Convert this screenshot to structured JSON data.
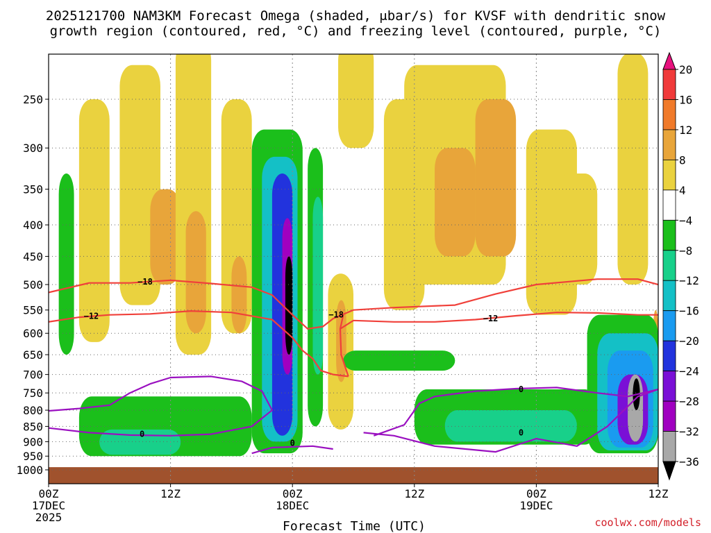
{
  "chart_data": {
    "type": "heatmap",
    "title_line1": "2025121700 NAM3KM Forecast Omega (shaded, μbar/s) for KVSF with dendritic snow",
    "title_line2": "growth region (contoured, red, °C) and freezing level (contoured, purple, °C)",
    "xlabel": "Forecast Time (UTC)",
    "credit": "coolwx.com/models",
    "x_ticks": [
      {
        "hour": 0,
        "line1": "00Z",
        "line2": "17DEC",
        "line3": "2025"
      },
      {
        "hour": 12,
        "line1": "12Z",
        "line2": "",
        "line3": ""
      },
      {
        "hour": 24,
        "line1": "00Z",
        "line2": "18DEC",
        "line3": ""
      },
      {
        "hour": 36,
        "line1": "12Z",
        "line2": "",
        "line3": ""
      },
      {
        "hour": 48,
        "line1": "00Z",
        "line2": "19DEC",
        "line3": ""
      },
      {
        "hour": 60,
        "line1": "12Z",
        "line2": "",
        "line3": ""
      }
    ],
    "xlim_hours": [
      0,
      60
    ],
    "ylim_hPa": [
      1030,
      200
    ],
    "y_ticks": [
      250,
      300,
      350,
      400,
      450,
      500,
      550,
      600,
      650,
      700,
      750,
      800,
      850,
      900,
      950,
      1000
    ],
    "colorbar": {
      "labels": [
        "20",
        "16",
        "12",
        "8",
        "4",
        "−4",
        "−8",
        "−12",
        "−16",
        "−20",
        "−24",
        "−28",
        "−32",
        "−36"
      ],
      "colors": [
        "#e8127e",
        "#f03a3a",
        "#f07a2a",
        "#e8a53a",
        "#ead23f",
        "#ffffff",
        "#1bbf1b",
        "#18d08a",
        "#14c0c6",
        "#1a9bf0",
        "#2233dd",
        "#7a10d6",
        "#a000c0",
        "#a8a8a8",
        "#000000"
      ]
    },
    "omega_cells": [
      {
        "t": [
          1,
          2.5
        ],
        "p": [
          330,
          650
        ],
        "v": -6
      },
      {
        "t": [
          3,
          6
        ],
        "p": [
          250,
          620
        ],
        "v": 6
      },
      {
        "t": [
          7,
          11
        ],
        "p": [
          220,
          540
        ],
        "v": 6
      },
      {
        "t": [
          10,
          13
        ],
        "p": [
          350,
          500
        ],
        "v": 10
      },
      {
        "t": [
          12.5,
          16
        ],
        "p": [
          200,
          650
        ],
        "v": 5
      },
      {
        "t": [
          13.5,
          15.5
        ],
        "p": [
          380,
          600
        ],
        "v": 10
      },
      {
        "t": [
          17,
          20
        ],
        "p": [
          250,
          600
        ],
        "v": 6
      },
      {
        "t": [
          18,
          19.5
        ],
        "p": [
          450,
          600
        ],
        "v": 11
      },
      {
        "t": [
          20,
          25
        ],
        "p": [
          280,
          940
        ],
        "v": -8
      },
      {
        "t": [
          21,
          24.5
        ],
        "p": [
          310,
          900
        ],
        "v": -14
      },
      {
        "t": [
          22,
          24
        ],
        "p": [
          330,
          880
        ],
        "v": -22
      },
      {
        "t": [
          23,
          24
        ],
        "p": [
          390,
          700
        ],
        "v": -30
      },
      {
        "t": [
          23.3,
          24
        ],
        "p": [
          450,
          650
        ],
        "v": -40
      },
      {
        "t": [
          25.5,
          27
        ],
        "p": [
          300,
          850
        ],
        "v": -8
      },
      {
        "t": [
          26,
          27
        ],
        "p": [
          360,
          700
        ],
        "v": -12
      },
      {
        "t": [
          27.5,
          30
        ],
        "p": [
          480,
          860
        ],
        "v": 6
      },
      {
        "t": [
          28.3,
          29.3
        ],
        "p": [
          530,
          720
        ],
        "v": 10
      },
      {
        "t": [
          28.5,
          32
        ],
        "p": [
          200,
          300
        ],
        "v": 5
      },
      {
        "t": [
          33,
          37
        ],
        "p": [
          250,
          550
        ],
        "v": 5
      },
      {
        "t": [
          35,
          45
        ],
        "p": [
          220,
          500
        ],
        "v": 6
      },
      {
        "t": [
          38,
          42
        ],
        "p": [
          300,
          450
        ],
        "v": 9
      },
      {
        "t": [
          42,
          46
        ],
        "p": [
          250,
          450
        ],
        "v": 8
      },
      {
        "t": [
          47,
          52
        ],
        "p": [
          280,
          560
        ],
        "v": 5
      },
      {
        "t": [
          50,
          54
        ],
        "p": [
          330,
          500
        ],
        "v": 6
      },
      {
        "t": [
          56,
          59
        ],
        "p": [
          210,
          500
        ],
        "v": 5
      },
      {
        "t": [
          59.5,
          60
        ],
        "p": [
          550,
          640
        ],
        "v": 8
      },
      {
        "t": [
          29,
          40
        ],
        "p": [
          640,
          690
        ],
        "v": -6
      },
      {
        "t": [
          36,
          54
        ],
        "p": [
          740,
          910
        ],
        "v": -8
      },
      {
        "t": [
          39,
          52
        ],
        "p": [
          800,
          900
        ],
        "v": -12
      },
      {
        "t": [
          53,
          60
        ],
        "p": [
          560,
          940
        ],
        "v": -8
      },
      {
        "t": [
          54,
          60
        ],
        "p": [
          600,
          930
        ],
        "v": -14
      },
      {
        "t": [
          55,
          59.5
        ],
        "p": [
          640,
          920
        ],
        "v": -20
      },
      {
        "t": [
          56,
          59
        ],
        "p": [
          700,
          910
        ],
        "v": -28
      },
      {
        "t": [
          57,
          58.5
        ],
        "p": [
          700,
          900
        ],
        "v": -33
      },
      {
        "t": [
          57.5,
          58.2
        ],
        "p": [
          710,
          800
        ],
        "v": -40
      },
      {
        "t": [
          3,
          20
        ],
        "p": [
          760,
          950
        ],
        "v": -8
      },
      {
        "t": [
          5,
          13
        ],
        "p": [
          860,
          945
        ],
        "v": -12
      }
    ],
    "red_contours": [
      {
        "label": "−18",
        "points": [
          [
            0,
            515
          ],
          [
            4,
            497
          ],
          [
            8,
            497
          ],
          [
            12,
            492
          ],
          [
            16,
            498
          ],
          [
            20,
            505
          ],
          [
            22,
            520
          ],
          [
            24,
            560
          ],
          [
            25.5,
            590
          ],
          [
            27,
            585
          ],
          [
            28,
            568
          ],
          [
            30,
            550
          ],
          [
            34,
            545
          ],
          [
            40,
            540
          ],
          [
            44,
            518
          ],
          [
            48,
            500
          ],
          [
            54,
            490
          ],
          [
            58,
            490
          ],
          [
            60,
            500
          ]
        ],
        "label_at": [
          9.5,
          495
        ]
      },
      {
        "label": "−12",
        "points": [
          [
            0,
            575
          ],
          [
            3,
            565
          ],
          [
            6,
            560
          ],
          [
            10,
            558
          ],
          [
            14,
            552
          ],
          [
            18,
            555
          ],
          [
            22,
            570
          ],
          [
            24,
            610
          ],
          [
            25,
            640
          ],
          [
            26,
            660
          ],
          [
            26.8,
            690
          ],
          [
            28,
            700
          ],
          [
            29.5,
            705
          ]
        ],
        "label_at": [
          4.2,
          563
        ]
      },
      {
        "label": "−12",
        "points": [
          [
            29.5,
            705
          ],
          [
            28.8,
            650
          ],
          [
            28.7,
            590
          ],
          [
            30,
            572
          ],
          [
            34,
            575
          ],
          [
            38,
            575
          ],
          [
            42,
            570
          ],
          [
            46,
            562
          ],
          [
            50,
            555
          ],
          [
            54,
            556
          ],
          [
            58,
            560
          ],
          [
            60,
            560
          ]
        ],
        "label_at": [
          43.5,
          568
        ]
      },
      {
        "label": "−18",
        "points": [
          [
            28.7,
            590
          ],
          [
            29,
            560
          ]
        ],
        "label_at": [
          28.3,
          560
        ]
      }
    ],
    "purple_contours": [
      {
        "label": "0",
        "points": [
          [
            0,
            802
          ],
          [
            3,
            795
          ],
          [
            6,
            785
          ],
          [
            8,
            750
          ],
          [
            10,
            725
          ],
          [
            12,
            708
          ],
          [
            16,
            705
          ],
          [
            19,
            718
          ],
          [
            21,
            745
          ],
          [
            22,
            800
          ],
          [
            20,
            850
          ],
          [
            16,
            875
          ],
          [
            12,
            880
          ],
          [
            8,
            878
          ],
          [
            4,
            870
          ],
          [
            0,
            855
          ]
        ],
        "label_at": [
          9.2,
          875
        ]
      },
      {
        "label": "0",
        "points": [
          [
            20,
            940
          ],
          [
            22,
            920
          ],
          [
            26,
            915
          ],
          [
            28,
            925
          ]
        ],
        "label_at": [
          24,
          905
        ]
      },
      {
        "label": "0",
        "points": [
          [
            31,
            870
          ],
          [
            34,
            880
          ],
          [
            38,
            915
          ],
          [
            44,
            935
          ],
          [
            48,
            890
          ],
          [
            52,
            915
          ],
          [
            55,
            850
          ],
          [
            58,
            760
          ],
          [
            60,
            740
          ]
        ],
        "label_at": [
          46.5,
          870
        ]
      },
      {
        "label": "0",
        "points": [
          [
            32,
            880
          ],
          [
            35,
            845
          ],
          [
            36.5,
            780
          ],
          [
            38,
            760
          ],
          [
            42,
            745
          ],
          [
            46,
            738
          ],
          [
            50,
            735
          ],
          [
            54,
            750
          ],
          [
            57,
            760
          ],
          [
            60,
            740
          ]
        ],
        "label_at": [
          46.5,
          740
        ]
      }
    ]
  }
}
